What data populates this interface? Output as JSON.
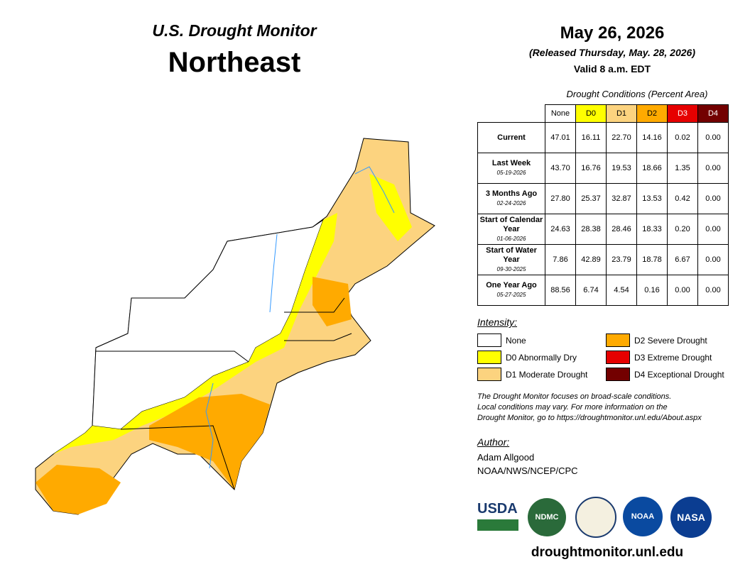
{
  "header": {
    "title": "U.S. Drought Monitor",
    "region": "Northeast"
  },
  "date": {
    "map_date": "May 26, 2026",
    "released": "(Released Thursday, May. 28, 2026)",
    "valid": "Valid 8 a.m. EDT"
  },
  "table": {
    "caption": "Drought Conditions (Percent Area)",
    "columns": [
      "None",
      "D0",
      "D1",
      "D2",
      "D3",
      "D4"
    ],
    "column_colors": [
      "#ffffff",
      "#ffff00",
      "#fcd37f",
      "#ffaa00",
      "#e60000",
      "#730000"
    ],
    "rows": [
      {
        "label": "Current",
        "values": [
          "47.01",
          "16.11",
          "22.70",
          "14.16",
          "0.02",
          "0.00"
        ]
      },
      {
        "label": "Last Week",
        "date": "05-19-2026",
        "values": [
          "43.70",
          "16.76",
          "19.53",
          "18.66",
          "1.35",
          "0.00"
        ]
      },
      {
        "label": "3 Months Ago",
        "date": "02-24-2026",
        "values": [
          "27.80",
          "25.37",
          "32.87",
          "13.53",
          "0.42",
          "0.00"
        ]
      },
      {
        "label": "Start of Calendar Year",
        "date": "01-06-2026",
        "values": [
          "24.63",
          "28.38",
          "28.46",
          "18.33",
          "0.20",
          "0.00"
        ]
      },
      {
        "label": "Start of Water Year",
        "date": "09-30-2025",
        "values": [
          "7.86",
          "42.89",
          "23.79",
          "18.78",
          "6.67",
          "0.00"
        ]
      },
      {
        "label": "One Year Ago",
        "date": "05-27-2025",
        "values": [
          "88.56",
          "6.74",
          "4.54",
          "0.16",
          "0.00",
          "0.00"
        ]
      }
    ]
  },
  "legend": {
    "title": "Intensity:",
    "items": [
      {
        "label": "None",
        "color": "#ffffff"
      },
      {
        "label": "D0 Abnormally Dry",
        "color": "#ffff00"
      },
      {
        "label": "D1 Moderate Drought",
        "color": "#fcd37f"
      },
      {
        "label": "D2 Severe Drought",
        "color": "#ffaa00"
      },
      {
        "label": "D3 Extreme Drought",
        "color": "#e60000"
      },
      {
        "label": "D4 Exceptional Drought",
        "color": "#730000"
      }
    ]
  },
  "note": [
    "The Drought Monitor focuses on broad-scale conditions.",
    "Local conditions may vary. For more information on the",
    "Drought Monitor, go to https://droughtmonitor.unl.edu/About.aspx"
  ],
  "author": {
    "title": "Author:",
    "name": "Adam Allgood",
    "org": "NOAA/NWS/NCEP/CPC"
  },
  "logos": [
    "USDA",
    "NDMC",
    "NOAA",
    "NASA"
  ],
  "url": "droughtmonitor.unl.edu"
}
